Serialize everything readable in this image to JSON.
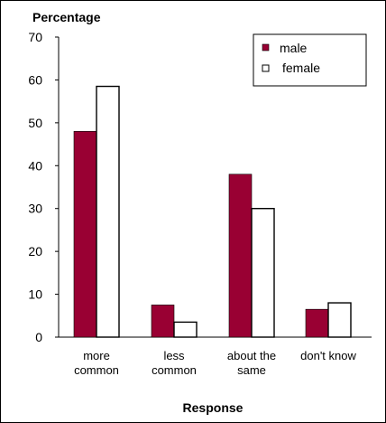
{
  "chart_data": {
    "type": "bar",
    "ylabel": "Percentage",
    "xlabel": "Response",
    "ylim": [
      0,
      70
    ],
    "yticks": [
      0,
      10,
      20,
      30,
      40,
      50,
      60,
      70
    ],
    "categories": [
      [
        "more",
        "common"
      ],
      [
        "less",
        "common"
      ],
      [
        "about the",
        "same"
      ],
      [
        "don't know"
      ]
    ],
    "series": [
      {
        "name": "male",
        "values": [
          48,
          7.5,
          38,
          6.5
        ],
        "color": "#990033"
      },
      {
        "name": "female",
        "values": [
          58.5,
          3.5,
          30,
          8
        ],
        "color": "#ffffff"
      }
    ],
    "legend_position": "top-right",
    "grid": false
  }
}
